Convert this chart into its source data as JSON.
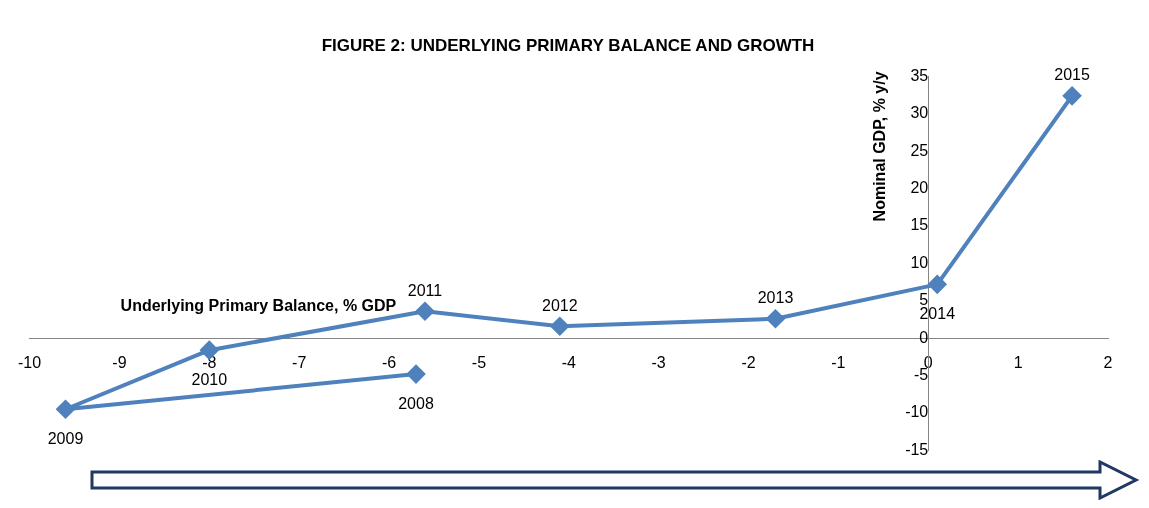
{
  "chart_data": {
    "type": "line",
    "title": "FIGURE 2: UNDERLYING PRIMARY BALANCE AND GROWTH",
    "xlabel": "Underlying Primary Balance, % GDP",
    "ylabel": "Nominal GDP, % y/y",
    "series": [
      {
        "color": "#4f81bd",
        "x": [
          -5.7,
          -9.6,
          -8.0,
          -5.6,
          -4.1,
          -1.7,
          0.1,
          1.6
        ],
        "values": [
          -4.8,
          -9.5,
          -1.6,
          3.6,
          1.6,
          2.6,
          7.2,
          32.4
        ]
      }
    ],
    "annotations": [
      {
        "text": "2008",
        "x": -5.7,
        "y": -4.8
      },
      {
        "text": "2009",
        "x": -9.6,
        "y": -9.5
      },
      {
        "text": "2010",
        "x": -8.0,
        "y": -1.6
      },
      {
        "text": "2011",
        "x": -5.6,
        "y": 3.6
      },
      {
        "text": "2012",
        "x": -4.1,
        "y": 1.6
      },
      {
        "text": "2013",
        "x": -1.7,
        "y": 2.6
      },
      {
        "text": "2014",
        "x": 0.1,
        "y": 7.2
      },
      {
        "text": "2015",
        "x": 1.6,
        "y": 32.4
      }
    ],
    "xlim": [
      -10,
      2
    ],
    "ylim": [
      -15,
      35
    ],
    "xticks": [
      -10,
      -9,
      -8,
      -7,
      -6,
      -5,
      -4,
      -3,
      -2,
      -1,
      0,
      1,
      2
    ],
    "yticks": [
      -15,
      -10,
      -5,
      0,
      5,
      10,
      15,
      20,
      25,
      30,
      35
    ],
    "marker": "diamond",
    "line_style": "solid"
  }
}
